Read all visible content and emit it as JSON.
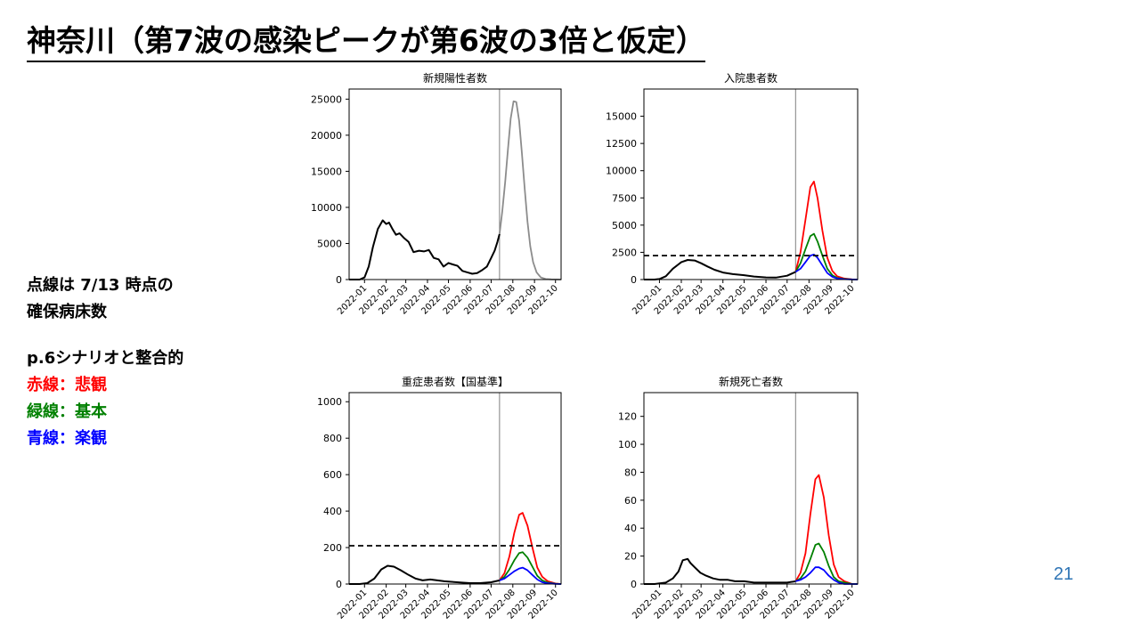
{
  "slide": {
    "title": "神奈川（第7波の感染ピークが第6波の3倍と仮定）",
    "page_number": "21"
  },
  "notes": {
    "dotted_line_1": "点線は 7/13 時点の",
    "dotted_line_2": "確保病床数",
    "consistency": "p.6シナリオと整合的",
    "red_label": "赤線：悲観",
    "green_label": "緑線：基本",
    "blue_label": "青線：楽観"
  },
  "colors": {
    "observed": "#000000",
    "forecast_gray": "#8c8c8c",
    "pessimistic": "#ff0000",
    "base": "#008000",
    "optimistic": "#0000ff",
    "page_number": "#2e74b5"
  },
  "chart_data": [
    {
      "type": "line",
      "title": "新規陽性者数",
      "xlabel": "",
      "ylabel": "",
      "x_ticks": [
        "2022-01",
        "2022-02",
        "2022-03",
        "2022-04",
        "2022-05",
        "2022-06",
        "2022-07",
        "2022-08",
        "2022-09",
        "2022-10"
      ],
      "xlim": [
        "2021-12-10",
        "2022-10-09"
      ],
      "ylim": [
        0,
        26400
      ],
      "y_ticks": [
        0,
        5000,
        10000,
        15000,
        20000,
        25000
      ],
      "vline": "2022-07-13",
      "grid": false,
      "series": [
        {
          "role": "observed",
          "color": "#000000",
          "x": [
            "2021-12-10",
            "2021-12-25",
            "2022-01-01",
            "2022-01-07",
            "2022-01-13",
            "2022-01-20",
            "2022-01-27",
            "2022-02-01",
            "2022-02-05",
            "2022-02-10",
            "2022-02-15",
            "2022-02-20",
            "2022-02-27",
            "2022-03-05",
            "2022-03-12",
            "2022-03-20",
            "2022-03-27",
            "2022-04-03",
            "2022-04-10",
            "2022-04-17",
            "2022-04-24",
            "2022-05-01",
            "2022-05-07",
            "2022-05-14",
            "2022-05-21",
            "2022-05-28",
            "2022-06-04",
            "2022-06-11",
            "2022-06-18",
            "2022-06-25",
            "2022-07-01",
            "2022-07-06",
            "2022-07-10",
            "2022-07-13"
          ],
          "y": [
            0,
            0,
            300,
            1800,
            4500,
            7000,
            8200,
            7700,
            7900,
            7000,
            6200,
            6400,
            5700,
            5200,
            3800,
            4000,
            3900,
            4100,
            3000,
            2800,
            1800,
            2300,
            2100,
            1900,
            1200,
            1000,
            800,
            900,
            1300,
            1800,
            3000,
            4000,
            5200,
            6300
          ]
        },
        {
          "role": "forecast",
          "color": "#8c8c8c",
          "x": [
            "2022-07-13",
            "2022-07-17",
            "2022-07-21",
            "2022-07-25",
            "2022-07-29",
            "2022-08-02",
            "2022-08-06",
            "2022-08-10",
            "2022-08-14",
            "2022-08-18",
            "2022-08-22",
            "2022-08-26",
            "2022-08-30",
            "2022-09-04",
            "2022-09-10",
            "2022-09-17",
            "2022-09-25",
            "2022-10-09"
          ],
          "y": [
            6300,
            9500,
            13500,
            18000,
            22300,
            24700,
            24600,
            22000,
            17500,
            12500,
            8000,
            4600,
            2400,
            1000,
            300,
            80,
            20,
            0
          ]
        }
      ]
    },
    {
      "type": "line",
      "title": "入院患者数",
      "xlabel": "",
      "ylabel": "",
      "x_ticks": [
        "2022-01",
        "2022-02",
        "2022-03",
        "2022-04",
        "2022-05",
        "2022-06",
        "2022-07",
        "2022-08",
        "2022-09",
        "2022-10"
      ],
      "xlim": [
        "2021-12-10",
        "2022-10-09"
      ],
      "ylim": [
        0,
        17500
      ],
      "y_ticks": [
        0,
        2500,
        5000,
        7500,
        10000,
        12500,
        15000
      ],
      "vline": "2022-07-13",
      "hline": 2200,
      "grid": false,
      "series": [
        {
          "role": "observed",
          "color": "#000000",
          "x": [
            "2021-12-10",
            "2021-12-25",
            "2022-01-01",
            "2022-01-10",
            "2022-01-20",
            "2022-02-01",
            "2022-02-10",
            "2022-02-20",
            "2022-03-01",
            "2022-03-10",
            "2022-03-20",
            "2022-04-01",
            "2022-04-15",
            "2022-05-01",
            "2022-05-15",
            "2022-06-01",
            "2022-06-15",
            "2022-07-01",
            "2022-07-13"
          ],
          "y": [
            0,
            0,
            50,
            300,
            1000,
            1600,
            1800,
            1750,
            1500,
            1200,
            900,
            650,
            500,
            400,
            280,
            200,
            180,
            350,
            700
          ]
        },
        {
          "role": "pessimistic",
          "color": "#ff0000",
          "x": [
            "2022-07-13",
            "2022-07-20",
            "2022-07-27",
            "2022-08-03",
            "2022-08-08",
            "2022-08-13",
            "2022-08-20",
            "2022-08-27",
            "2022-09-03",
            "2022-09-10",
            "2022-09-20",
            "2022-10-01",
            "2022-10-09"
          ],
          "y": [
            700,
            2500,
            5500,
            8500,
            9000,
            7500,
            4500,
            2000,
            800,
            300,
            100,
            20,
            0
          ]
        },
        {
          "role": "base",
          "color": "#008000",
          "x": [
            "2022-07-13",
            "2022-07-20",
            "2022-07-27",
            "2022-08-03",
            "2022-08-08",
            "2022-08-13",
            "2022-08-20",
            "2022-08-27",
            "2022-09-03",
            "2022-09-10",
            "2022-09-20",
            "2022-10-01",
            "2022-10-09"
          ],
          "y": [
            700,
            1500,
            2800,
            4000,
            4200,
            3500,
            2200,
            1000,
            400,
            150,
            50,
            10,
            0
          ]
        },
        {
          "role": "optimistic",
          "color": "#0000ff",
          "x": [
            "2022-07-13",
            "2022-07-20",
            "2022-07-27",
            "2022-08-03",
            "2022-08-08",
            "2022-08-13",
            "2022-08-20",
            "2022-08-27",
            "2022-09-03",
            "2022-09-10",
            "2022-09-20",
            "2022-10-01",
            "2022-10-09"
          ],
          "y": [
            700,
            1000,
            1600,
            2200,
            2300,
            2000,
            1300,
            600,
            250,
            100,
            30,
            5,
            0
          ]
        }
      ]
    },
    {
      "type": "line",
      "title": "重症患者数【国基準】",
      "xlabel": "",
      "ylabel": "",
      "x_ticks": [
        "2022-01",
        "2022-02",
        "2022-03",
        "2022-04",
        "2022-05",
        "2022-06",
        "2022-07",
        "2022-08",
        "2022-09",
        "2022-10"
      ],
      "xlim": [
        "2021-12-10",
        "2022-10-09"
      ],
      "ylim": [
        0,
        1050
      ],
      "y_ticks": [
        0,
        200,
        400,
        600,
        800,
        1000
      ],
      "vline": "2022-07-13",
      "hline": 210,
      "grid": false,
      "series": [
        {
          "role": "observed",
          "color": "#000000",
          "x": [
            "2021-12-10",
            "2021-12-25",
            "2022-01-05",
            "2022-01-15",
            "2022-01-25",
            "2022-02-03",
            "2022-02-12",
            "2022-02-22",
            "2022-03-05",
            "2022-03-15",
            "2022-03-25",
            "2022-04-05",
            "2022-04-15",
            "2022-04-25",
            "2022-05-05",
            "2022-05-20",
            "2022-06-01",
            "2022-06-15",
            "2022-07-01",
            "2022-07-13"
          ],
          "y": [
            0,
            0,
            5,
            30,
            80,
            100,
            95,
            75,
            50,
            30,
            20,
            25,
            20,
            15,
            12,
            8,
            5,
            5,
            10,
            20
          ]
        },
        {
          "role": "pessimistic",
          "color": "#ff0000",
          "x": [
            "2022-07-13",
            "2022-07-20",
            "2022-07-27",
            "2022-08-03",
            "2022-08-10",
            "2022-08-15",
            "2022-08-22",
            "2022-08-29",
            "2022-09-05",
            "2022-09-12",
            "2022-09-20",
            "2022-10-01",
            "2022-10-09"
          ],
          "y": [
            20,
            60,
            150,
            280,
            380,
            390,
            320,
            200,
            90,
            40,
            15,
            3,
            0
          ]
        },
        {
          "role": "base",
          "color": "#008000",
          "x": [
            "2022-07-13",
            "2022-07-20",
            "2022-07-27",
            "2022-08-03",
            "2022-08-10",
            "2022-08-15",
            "2022-08-22",
            "2022-08-29",
            "2022-09-05",
            "2022-09-12",
            "2022-09-20",
            "2022-10-01",
            "2022-10-09"
          ],
          "y": [
            20,
            40,
            80,
            130,
            170,
            175,
            145,
            95,
            45,
            20,
            8,
            2,
            0
          ]
        },
        {
          "role": "optimistic",
          "color": "#0000ff",
          "x": [
            "2022-07-13",
            "2022-07-20",
            "2022-07-27",
            "2022-08-03",
            "2022-08-10",
            "2022-08-15",
            "2022-08-22",
            "2022-08-29",
            "2022-09-05",
            "2022-09-12",
            "2022-09-20",
            "2022-10-01",
            "2022-10-09"
          ],
          "y": [
            20,
            30,
            50,
            70,
            85,
            90,
            75,
            50,
            25,
            10,
            4,
            1,
            0
          ]
        }
      ]
    },
    {
      "type": "line",
      "title": "新規死亡者数",
      "xlabel": "",
      "ylabel": "",
      "x_ticks": [
        "2022-01",
        "2022-02",
        "2022-03",
        "2022-04",
        "2022-05",
        "2022-06",
        "2022-07",
        "2022-08",
        "2022-09",
        "2022-10"
      ],
      "xlim": [
        "2021-12-10",
        "2022-10-09"
      ],
      "ylim": [
        0,
        137
      ],
      "y_ticks": [
        0,
        20,
        40,
        60,
        80,
        100,
        120
      ],
      "vline": "2022-07-13",
      "grid": false,
      "series": [
        {
          "role": "observed",
          "color": "#000000",
          "x": [
            "2021-12-10",
            "2021-12-25",
            "2022-01-10",
            "2022-01-20",
            "2022-01-28",
            "2022-02-03",
            "2022-02-10",
            "2022-02-14",
            "2022-02-20",
            "2022-02-28",
            "2022-03-08",
            "2022-03-18",
            "2022-03-28",
            "2022-04-08",
            "2022-04-18",
            "2022-05-01",
            "2022-05-15",
            "2022-06-01",
            "2022-06-15",
            "2022-07-01",
            "2022-07-13"
          ],
          "y": [
            0,
            0,
            1,
            4,
            9,
            17,
            18,
            15,
            12,
            8,
            6,
            4,
            3,
            3,
            2,
            2,
            1,
            1,
            1,
            1,
            2
          ]
        },
        {
          "role": "pessimistic",
          "color": "#ff0000",
          "x": [
            "2022-07-13",
            "2022-07-20",
            "2022-07-27",
            "2022-08-03",
            "2022-08-10",
            "2022-08-15",
            "2022-08-22",
            "2022-08-29",
            "2022-09-05",
            "2022-09-12",
            "2022-09-20",
            "2022-10-01",
            "2022-10-09"
          ],
          "y": [
            2,
            8,
            22,
            50,
            75,
            78,
            62,
            35,
            14,
            5,
            2,
            0,
            0
          ]
        },
        {
          "role": "base",
          "color": "#008000",
          "x": [
            "2022-07-13",
            "2022-07-20",
            "2022-07-27",
            "2022-08-03",
            "2022-08-10",
            "2022-08-15",
            "2022-08-22",
            "2022-08-29",
            "2022-09-05",
            "2022-09-12",
            "2022-09-20",
            "2022-10-01",
            "2022-10-09"
          ],
          "y": [
            2,
            4,
            9,
            18,
            28,
            29,
            23,
            13,
            5,
            2,
            1,
            0,
            0
          ]
        },
        {
          "role": "optimistic",
          "color": "#0000ff",
          "x": [
            "2022-07-13",
            "2022-07-20",
            "2022-07-27",
            "2022-08-03",
            "2022-08-10",
            "2022-08-15",
            "2022-08-22",
            "2022-08-29",
            "2022-09-05",
            "2022-09-12",
            "2022-09-20",
            "2022-10-01",
            "2022-10-09"
          ],
          "y": [
            2,
            3,
            5,
            8,
            12,
            12,
            10,
            6,
            3,
            1,
            0,
            0,
            0
          ]
        }
      ]
    }
  ]
}
